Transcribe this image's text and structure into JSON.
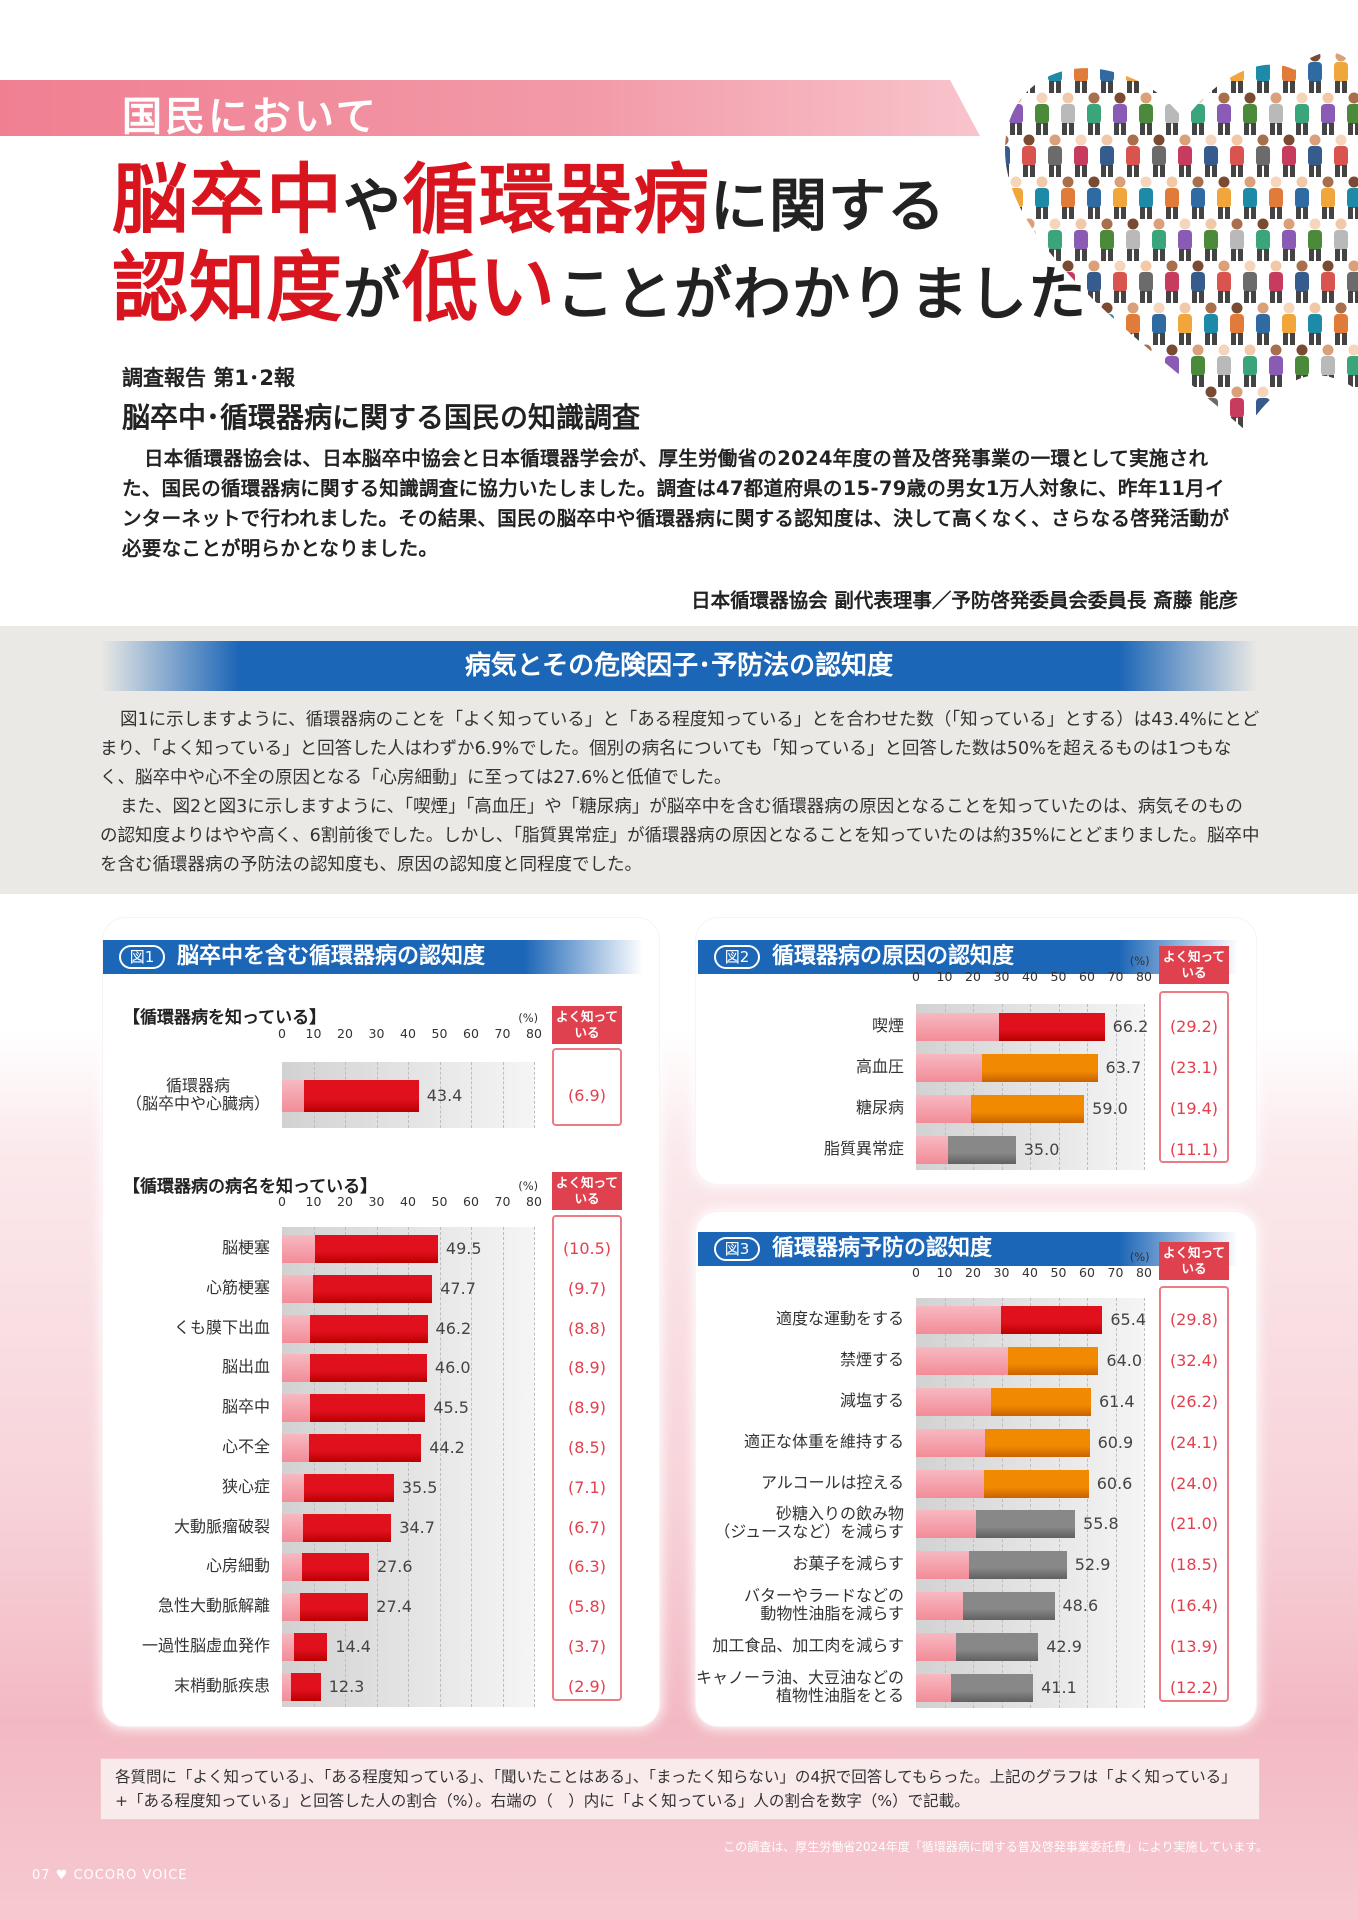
{
  "header": {
    "kicker": "国民において",
    "headline_line1": [
      {
        "t": "脳卒中",
        "r": true
      },
      {
        "t": "や",
        "r": false
      },
      {
        "t": "循環器病",
        "r": true
      },
      {
        "t": "に関する",
        "r": false
      }
    ],
    "headline_line2": [
      {
        "t": "認知度",
        "r": true
      },
      {
        "t": "が",
        "r": false
      },
      {
        "t": "低い",
        "r": true
      },
      {
        "t": "ことがわかりました",
        "r": false
      }
    ]
  },
  "report": {
    "label": "調査報告 第1･2報",
    "title": "脳卒中･循環器病に関する国民の知識調査",
    "intro": "日本循環器協会は、日本脳卒中協会と日本循環器学会が、厚生労働省の2024年度の普及啓発事業の一環として実施された、国民の循環器病に関する知識調査に協力いたしました。調査は47都道府県の15-79歳の男女1万人対象に、昨年11月インターネットで行われました。その結果、国民の脳卒中や循環器病に関する認知度は、決して高くなく、さらなる啓発活動が必要なことが明らかとなりました。",
    "author": "日本循環器協会 副代表理事／予防啓発委員会委員長 斎藤 能彦"
  },
  "section": {
    "title": "病気とその危険因子･予防法の認知度",
    "para1": "図1に示しますように、循環器病のことを「よく知っている」と「ある程度知っている」とを合わせた数（「知っている」とする）は43.4%にとどまり、「よく知っている」と回答した人はわずか6.9%でした。個別の病名についても「知っている」と回答した数は50%を超えるものは1つもなく、脳卒中や心不全の原因となる「心房細動」に至っては27.6%と低値でした。",
    "para2": "また、図2と図3に示しますように、「喫煙」「高血圧」や「糖尿病」が脳卒中を含む循環器病の原因となることを知っていたのは、病気そのものの認知度よりはやや高く、6割前後でした。しかし、「脂質異常症」が循環器病の原因となることを知っていたのは約35%にとどまりました。脳卒中を含む循環器病の予防法の認知度も、原因の認知度と同程度でした。"
  },
  "colors": {
    "red": "#e0101c",
    "orange": "#f18a00",
    "gray": "#888888",
    "pinkLight": "#f28c98",
    "grayLight": "#f2a7b0",
    "blue": "#1c66b7"
  },
  "chart_data": [
    {
      "id": "fig1a",
      "type": "bar",
      "badge": "図1",
      "title": "脳卒中を含む循環器病の認知度",
      "subtitle": "【循環器病を知っている】",
      "unit": "(%)",
      "yk_label": "よく知っている",
      "xlim": [
        0,
        80
      ],
      "ticks": [
        0,
        10,
        20,
        30,
        40,
        50,
        60,
        70,
        80
      ],
      "categories": [
        [
          "循環器病",
          "（脳卒中や心臓病）"
        ]
      ],
      "values": [
        43.4
      ],
      "well_known": [
        6.9
      ],
      "well_known_labels": [
        "(6.9)"
      ],
      "color": "red"
    },
    {
      "id": "fig1b",
      "type": "bar",
      "subtitle": "【循環器病の病名を知っている】",
      "unit": "(%)",
      "yk_label": "よく知っている",
      "xlim": [
        0,
        80
      ],
      "ticks": [
        0,
        10,
        20,
        30,
        40,
        50,
        60,
        70,
        80
      ],
      "categories": [
        [
          "脳梗塞"
        ],
        [
          "心筋梗塞"
        ],
        [
          "くも膜下出血"
        ],
        [
          "脳出血"
        ],
        [
          "脳卒中"
        ],
        [
          "心不全"
        ],
        [
          "狭心症"
        ],
        [
          "大動脈瘤破裂"
        ],
        [
          "心房細動"
        ],
        [
          "急性大動脈解離"
        ],
        [
          "一過性脳虚血発作"
        ],
        [
          "末梢動脈疾患"
        ]
      ],
      "values": [
        49.5,
        47.7,
        46.2,
        46.0,
        45.5,
        44.2,
        35.5,
        34.7,
        27.6,
        27.4,
        14.4,
        12.3
      ],
      "value_labels": [
        "49.5",
        "47.7",
        "46.2",
        "46.0",
        "45.5",
        "44.2",
        "35.5",
        "34.7",
        "27.6",
        "27.4",
        "14.4",
        "12.3"
      ],
      "well_known": [
        10.5,
        9.7,
        8.8,
        8.9,
        8.9,
        8.5,
        7.1,
        6.7,
        6.3,
        5.8,
        3.7,
        2.9
      ],
      "well_known_labels": [
        "(10.5)",
        "(9.7)",
        "(8.8)",
        "(8.9)",
        "(8.9)",
        "(8.5)",
        "(7.1)",
        "(6.7)",
        "(6.3)",
        "(5.8)",
        "(3.7)",
        "(2.9)"
      ],
      "color": "red"
    },
    {
      "id": "fig2",
      "type": "bar",
      "badge": "図2",
      "title": "循環器病の原因の認知度",
      "unit": "(%)",
      "yk_label": "よく知っている",
      "xlim": [
        0,
        80
      ],
      "ticks": [
        0,
        10,
        20,
        30,
        40,
        50,
        60,
        70,
        80
      ],
      "categories": [
        [
          "喫煙"
        ],
        [
          "高血圧"
        ],
        [
          "糖尿病"
        ],
        [
          "脂質異常症"
        ]
      ],
      "values": [
        66.2,
        63.7,
        59.0,
        35.0
      ],
      "value_labels": [
        "66.2",
        "63.7",
        "59.0",
        "35.0"
      ],
      "well_known": [
        29.2,
        23.1,
        19.4,
        11.1
      ],
      "well_known_labels": [
        "(29.2)",
        "(23.1)",
        "(19.4)",
        "(11.1)"
      ],
      "colors": [
        "red",
        "orange",
        "orange",
        "gray"
      ]
    },
    {
      "id": "fig3",
      "type": "bar",
      "badge": "図3",
      "title": "循環器病予防の認知度",
      "unit": "(%)",
      "yk_label": "よく知っている",
      "xlim": [
        0,
        80
      ],
      "ticks": [
        0,
        10,
        20,
        30,
        40,
        50,
        60,
        70,
        80
      ],
      "categories": [
        [
          "適度な運動をする"
        ],
        [
          "禁煙する"
        ],
        [
          "減塩する"
        ],
        [
          "適正な体重を維持する"
        ],
        [
          "アルコールは控える"
        ],
        [
          "砂糖入りの飲み物",
          "（ジュースなど）を減らす"
        ],
        [
          "お菓子を減らす"
        ],
        [
          "バターやラードなどの",
          "動物性油脂を減らす"
        ],
        [
          "加工食品、加工肉を減らす"
        ],
        [
          "キャノーラ油、大豆油などの",
          "植物性油脂をとる"
        ]
      ],
      "values": [
        65.4,
        64.0,
        61.4,
        60.9,
        60.6,
        55.8,
        52.9,
        48.6,
        42.9,
        41.1
      ],
      "value_labels": [
        "65.4",
        "64.0",
        "61.4",
        "60.9",
        "60.6",
        "55.8",
        "52.9",
        "48.6",
        "42.9",
        "41.1"
      ],
      "well_known": [
        29.8,
        32.4,
        26.2,
        24.1,
        24.0,
        21.0,
        18.5,
        16.4,
        13.9,
        12.2
      ],
      "well_known_labels": [
        "(29.8)",
        "(32.4)",
        "(26.2)",
        "(24.1)",
        "(24.0)",
        "(21.0)",
        "(18.5)",
        "(16.4)",
        "(13.9)",
        "(12.2)"
      ],
      "colors": [
        "red",
        "orange",
        "orange",
        "orange",
        "orange",
        "gray",
        "gray",
        "gray",
        "gray",
        "gray"
      ]
    }
  ],
  "footer": {
    "note": "各質問に「よく知っている」、「ある程度知っている」、「聞いたことはある」、「まったく知らない」の4択で回答してもらった。上記のグラフは「よく知っている」+「ある程度知っている」と回答した人の割合（%）。右端の（　）内に「よく知っている」人の割合を数字（%）で記載。",
    "source": "この調査は、厚生労働省2024年度「循環器病に関する普及啓発事業委託費」により実施しています。",
    "folio": "07 ♥ COCORO VOICE"
  }
}
